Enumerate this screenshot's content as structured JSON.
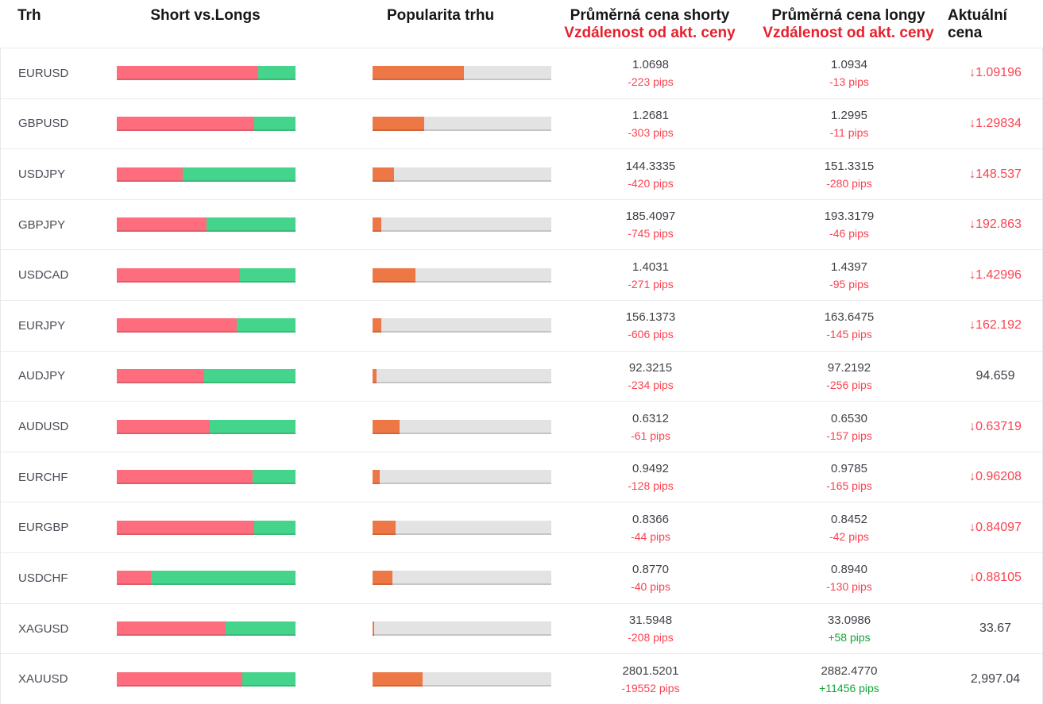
{
  "header": {
    "market": "Trh",
    "short_vs_longs": "Short vs.Longs",
    "popularity": "Popularita trhu",
    "avg_short_line1": "Průměrná cena shorty",
    "avg_short_line2": "Vzdálenost od akt. ceny",
    "avg_long_line1": "Průměrná cena longy",
    "avg_long_line2": "Vzdálenost od akt. ceny",
    "current_price": "Aktuální cena"
  },
  "icons": {
    "down_arrow": "↓"
  },
  "colors": {
    "text-header": "#161616",
    "text-header-red": "#e6202e",
    "text-market": "#4c4c56",
    "text-value": "#3f3f47",
    "text-red": "#fa4350",
    "text-green": "#12a537",
    "bar-red": "#fd6d7d",
    "bar-green": "#45d48b",
    "bar-orange": "#ee7746",
    "bar-track": "#e3e3e3",
    "separator": "#ebebee",
    "edge": "#e8e8eb"
  },
  "rows": [
    {
      "market": "EURUSD",
      "shorts_pct": 79,
      "longs_pct": 21,
      "popularity_pct": 51,
      "avg_short": "1.0698",
      "short_pips": "-223 pips",
      "avg_long": "1.0934",
      "long_pips": "-13 pips",
      "current": "1.09196",
      "direction": "down"
    },
    {
      "market": "GBPUSD",
      "shorts_pct": 77,
      "longs_pct": 23,
      "popularity_pct": 29,
      "avg_short": "1.2681",
      "short_pips": "-303 pips",
      "avg_long": "1.2995",
      "long_pips": "-11 pips",
      "current": "1.29834",
      "direction": "down"
    },
    {
      "market": "USDJPY",
      "shorts_pct": 37,
      "longs_pct": 63,
      "popularity_pct": 12,
      "avg_short": "144.3335",
      "short_pips": "-420 pips",
      "avg_long": "151.3315",
      "long_pips": "-280 pips",
      "current": "148.537",
      "direction": "down"
    },
    {
      "market": "GBPJPY",
      "shorts_pct": 50,
      "longs_pct": 50,
      "popularity_pct": 5,
      "avg_short": "185.4097",
      "short_pips": "-745 pips",
      "avg_long": "193.3179",
      "long_pips": "-46 pips",
      "current": "192.863",
      "direction": "down"
    },
    {
      "market": "USDCAD",
      "shorts_pct": 69,
      "longs_pct": 31,
      "popularity_pct": 24,
      "avg_short": "1.4031",
      "short_pips": "-271 pips",
      "avg_long": "1.4397",
      "long_pips": "-95 pips",
      "current": "1.42996",
      "direction": "down"
    },
    {
      "market": "EURJPY",
      "shorts_pct": 67,
      "longs_pct": 33,
      "popularity_pct": 5,
      "avg_short": "156.1373",
      "short_pips": "-606 pips",
      "avg_long": "163.6475",
      "long_pips": "-145 pips",
      "current": "162.192",
      "direction": "down"
    },
    {
      "market": "AUDJPY",
      "shorts_pct": 49,
      "longs_pct": 51,
      "popularity_pct": 2,
      "avg_short": "92.3215",
      "short_pips": "-234 pips",
      "avg_long": "97.2192",
      "long_pips": "-256 pips",
      "current": "94.659",
      "direction": "none"
    },
    {
      "market": "AUDUSD",
      "shorts_pct": 52,
      "longs_pct": 48,
      "popularity_pct": 15,
      "avg_short": "0.6312",
      "short_pips": "-61 pips",
      "avg_long": "0.6530",
      "long_pips": "-157 pips",
      "current": "0.63719",
      "direction": "down"
    },
    {
      "market": "EURCHF",
      "shorts_pct": 76,
      "longs_pct": 24,
      "popularity_pct": 4,
      "avg_short": "0.9492",
      "short_pips": "-128 pips",
      "avg_long": "0.9785",
      "long_pips": "-165 pips",
      "current": "0.96208",
      "direction": "down"
    },
    {
      "market": "EURGBP",
      "shorts_pct": 77,
      "longs_pct": 23,
      "popularity_pct": 13,
      "avg_short": "0.8366",
      "short_pips": "-44 pips",
      "avg_long": "0.8452",
      "long_pips": "-42 pips",
      "current": "0.84097",
      "direction": "down"
    },
    {
      "market": "USDCHF",
      "shorts_pct": 19,
      "longs_pct": 81,
      "popularity_pct": 11,
      "avg_short": "0.8770",
      "short_pips": "-40 pips",
      "avg_long": "0.8940",
      "long_pips": "-130 pips",
      "current": "0.88105",
      "direction": "down"
    },
    {
      "market": "XAGUSD",
      "shorts_pct": 61,
      "longs_pct": 39,
      "popularity_pct": 1,
      "avg_short": "31.5948",
      "short_pips": "-208 pips",
      "avg_long": "33.0986",
      "long_pips": "+58 pips",
      "current": "33.67",
      "direction": "none"
    },
    {
      "market": "XAUUSD",
      "shorts_pct": 70,
      "longs_pct": 30,
      "popularity_pct": 28,
      "avg_short": "2801.5201",
      "short_pips": "-19552 pips",
      "avg_long": "2882.4770",
      "long_pips": "+11456 pips",
      "current": "2,997.04",
      "direction": "none"
    }
  ]
}
